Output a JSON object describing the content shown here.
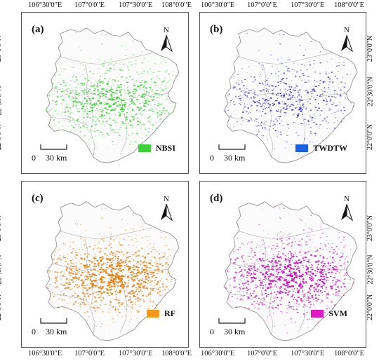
{
  "lon_ticks": [
    "106°30'0\"E",
    "107°0'0\"E",
    "107°30'0\"E",
    "108°0'0\"E"
  ],
  "lat_ticks": [
    "23°0'0\"N",
    "22°30'0\"N",
    "22°0'0\"N"
  ],
  "north_letter": "N",
  "scale": {
    "left": "0",
    "right": "30 km"
  },
  "panels": [
    {
      "label": "(a)",
      "legend": "NBSI",
      "color": "#3fd13a"
    },
    {
      "label": "(b)",
      "legend": "TWDTW",
      "color": "#1a5fe0",
      "map_color": "#3b37c8"
    },
    {
      "label": "(c)",
      "legend": "RF",
      "color": "#f39a1d",
      "map_color": "#e3851a"
    },
    {
      "label": "(d)",
      "legend": "SVM",
      "color": "#e01bc4",
      "map_color": "#c418b8"
    }
  ]
}
